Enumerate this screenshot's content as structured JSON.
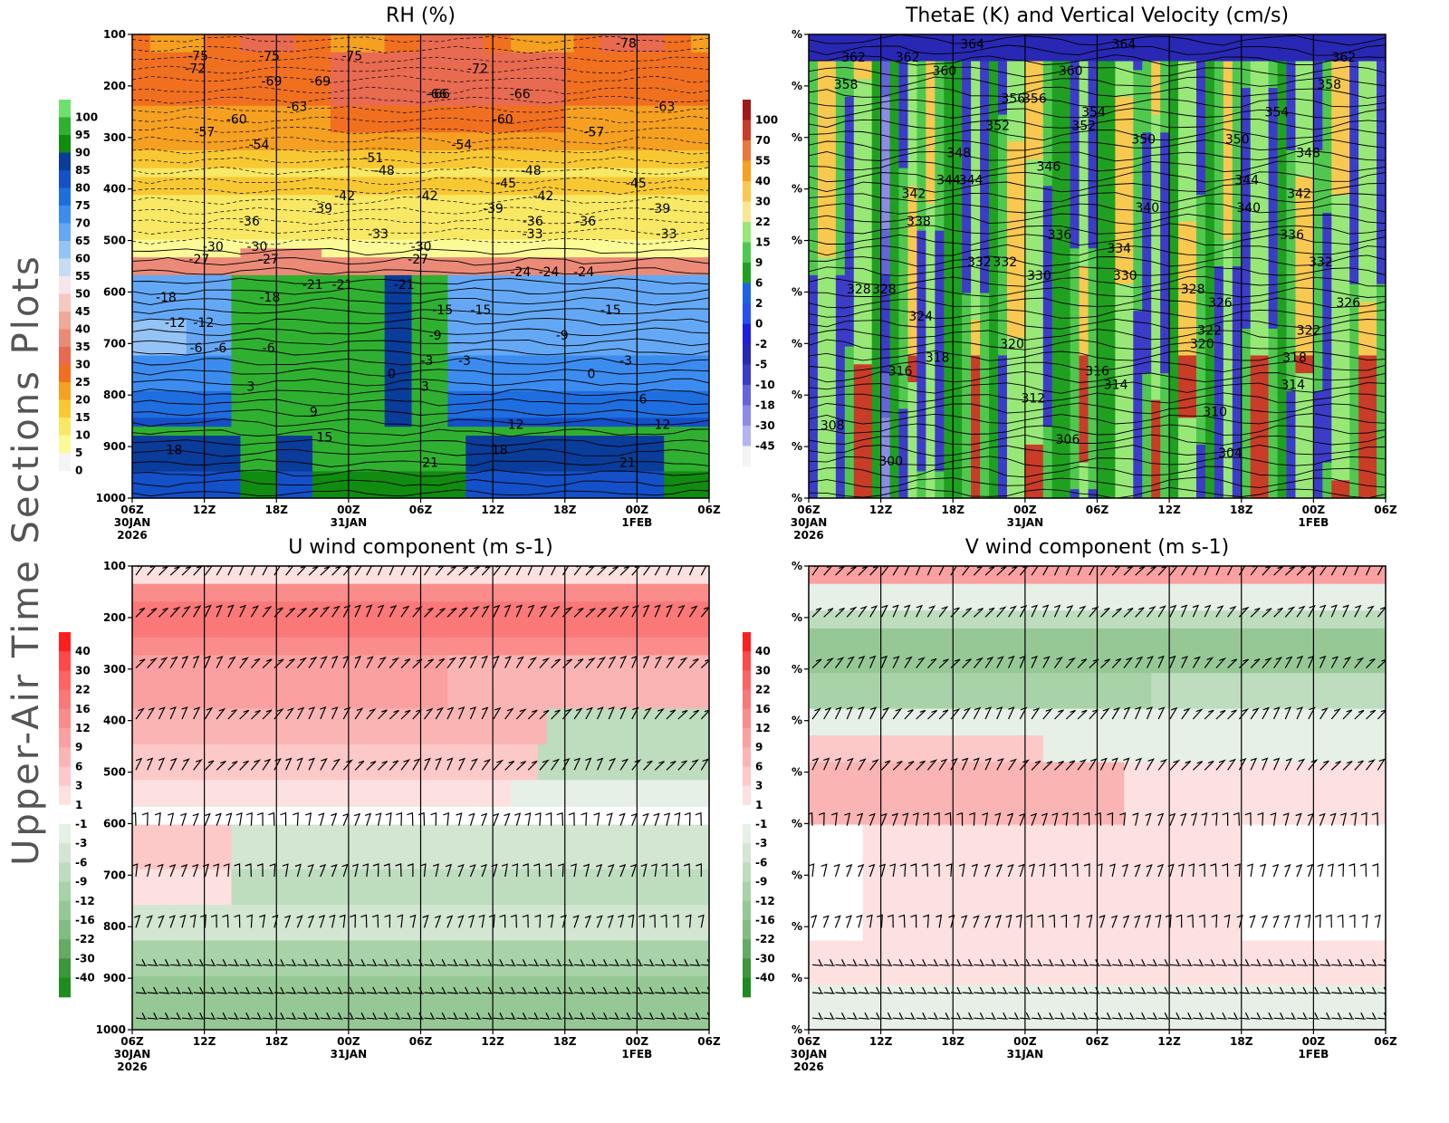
{
  "page": {
    "side_title": "Upper-Air Time Sections Plots"
  },
  "chart_data": [
    {
      "id": "rh",
      "type": "heatmap",
      "title": "RH (%)",
      "ylabels": [
        "100",
        "200",
        "300",
        "400",
        "500",
        "600",
        "700",
        "800",
        "900",
        "1000"
      ],
      "xticks": [
        "06Z",
        "12Z",
        "18Z",
        "00Z",
        "06Z",
        "12Z",
        "18Z",
        "00Z",
        "06Z"
      ],
      "xdates": [
        "30JAN",
        "",
        "",
        "31JAN",
        "",
        "",
        "",
        "1FEB",
        ""
      ],
      "xyear": "2026",
      "colorbar": {
        "labels": [
          "100",
          "95",
          "90",
          "85",
          "80",
          "75",
          "70",
          "65",
          "60",
          "55",
          "50",
          "45",
          "40",
          "35",
          "30",
          "25",
          "20",
          "15",
          "10",
          "5",
          "0"
        ],
        "colors": [
          "#6ee06e",
          "#30b030",
          "#108c10",
          "#0a3c9a",
          "#1450c8",
          "#1e6ee0",
          "#3c8cf0",
          "#64a8f5",
          "#96c3f5",
          "#c6dcf5",
          "#f5e6ec",
          "#f5c8c0",
          "#f0a898",
          "#ec8a78",
          "#e86a50",
          "#f07020",
          "#f5a020",
          "#f8c832",
          "#f8e864",
          "#fafa96",
          "#f4f4f4"
        ]
      },
      "contours": [
        "-75",
        "-66",
        "-57",
        "-63",
        "-54",
        "-45",
        "-69",
        "-72",
        "-60",
        "-51",
        "-48",
        "-75",
        "-66",
        "-63",
        "-54",
        "-45",
        "-72",
        "-75",
        "-66",
        "-57",
        "-48",
        "-78",
        "-69",
        "-60",
        "-39",
        "-33",
        "-42",
        "-36",
        "-30",
        "-24",
        "-27",
        "-39",
        "-33",
        "-42",
        "-36",
        "-30",
        "-27",
        "-24",
        "-18",
        "-42",
        "-36",
        "-30",
        "-24",
        "-18",
        "-39",
        "-33",
        "-27",
        "-21",
        "-15",
        "-21",
        "-15",
        "-12",
        "-21",
        "-15",
        "-12",
        "-9",
        "-9",
        "-6",
        "-3",
        "-3",
        "-6",
        "-3",
        "-6",
        "0",
        "0",
        "3",
        "3",
        "6",
        "9",
        "12",
        "12",
        "15",
        "18",
        "18",
        "21",
        "21"
      ]
    },
    {
      "id": "thetae",
      "type": "heatmap",
      "title": "ThetaE (K) and Vertical Velocity (cm/s)",
      "ylabels": [
        "%",
        "%",
        "%",
        "%",
        "%",
        "%",
        "%",
        "%",
        "%",
        "%"
      ],
      "xticks": [
        "06Z",
        "12Z",
        "18Z",
        "00Z",
        "06Z",
        "12Z",
        "18Z",
        "00Z",
        "06Z"
      ],
      "xdates": [
        "30JAN",
        "",
        "",
        "31JAN",
        "",
        "",
        "",
        "1FEB",
        ""
      ],
      "xyear": "2026",
      "colorbar": {
        "labels": [
          "100",
          "70",
          "55",
          "40",
          "30",
          "22",
          "15",
          "9",
          "6",
          "2",
          "0",
          "-2",
          "-5",
          "-10",
          "-18",
          "-30",
          "-45"
        ],
        "colors": [
          "#a01818",
          "#c83c28",
          "#e8783c",
          "#f8a020",
          "#f8c850",
          "#f8e896",
          "#98e878",
          "#50c850",
          "#20a020",
          "#1e64e0",
          "#2850f0",
          "#1e1edc",
          "#2828b4",
          "#3c3cc8",
          "#6464dc",
          "#8c8ce8",
          "#b4b4f0",
          "#f4f4f4"
        ]
      },
      "contours": [
        "362",
        "352",
        "348",
        "360",
        "354",
        "358",
        "364",
        "350",
        "362",
        "356",
        "354",
        "348",
        "360",
        "358",
        "352",
        "364",
        "362",
        "356",
        "350",
        "344",
        "346",
        "344",
        "342",
        "340",
        "342",
        "344",
        "340",
        "338",
        "336",
        "336",
        "332",
        "334",
        "332",
        "332",
        "328",
        "328",
        "330",
        "326",
        "328",
        "330",
        "326",
        "324",
        "320",
        "322",
        "320",
        "322",
        "318",
        "316",
        "318",
        "316",
        "314",
        "314",
        "312",
        "310",
        "308",
        "306",
        "304",
        "300"
      ]
    },
    {
      "id": "u",
      "type": "heatmap",
      "title": "U wind component (m s-1)",
      "ylabels": [
        "100",
        "200",
        "300",
        "400",
        "500",
        "600",
        "700",
        "800",
        "900",
        "1000"
      ],
      "xticks": [
        "06Z",
        "12Z",
        "18Z",
        "00Z",
        "06Z",
        "12Z",
        "18Z",
        "00Z",
        "06Z"
      ],
      "xdates": [
        "30JAN",
        "",
        "",
        "31JAN",
        "",
        "",
        "",
        "1FEB",
        ""
      ],
      "xyear": "2026",
      "colorbar": {
        "labels": [
          "40",
          "30",
          "22",
          "16",
          "12",
          "9",
          "6",
          "3",
          "1",
          "-1",
          "-3",
          "-6",
          "-9",
          "-12",
          "-16",
          "-22",
          "-30",
          "-40"
        ],
        "colors": [
          "#ff1e1e",
          "#ff4848",
          "#ff6464",
          "#fa7878",
          "#fa8c8c",
          "#faa0a0",
          "#fab4b4",
          "#fcc8c8",
          "#fde0e0",
          "#ffffff",
          "#e6f0e6",
          "#d2e6d2",
          "#bedcbe",
          "#a8d2a8",
          "#96c896",
          "#82bc82",
          "#64aa64",
          "#3c963c",
          "#1e8c1e"
        ]
      },
      "contours": []
    },
    {
      "id": "v",
      "type": "heatmap",
      "title": "V wind component (m s-1)",
      "ylabels": [
        "%",
        "%",
        "%",
        "%",
        "%",
        "%",
        "%",
        "%",
        "%",
        "%"
      ],
      "xticks": [
        "06Z",
        "12Z",
        "18Z",
        "00Z",
        "06Z",
        "12Z",
        "18Z",
        "00Z",
        "06Z"
      ],
      "xdates": [
        "30JAN",
        "",
        "",
        "31JAN",
        "",
        "",
        "",
        "1FEB",
        ""
      ],
      "xyear": "2026",
      "colorbar": {
        "labels": [
          "40",
          "30",
          "22",
          "16",
          "12",
          "9",
          "6",
          "3",
          "1",
          "-1",
          "-3",
          "-6",
          "-9",
          "-12",
          "-16",
          "-22",
          "-30",
          "-40"
        ],
        "colors": [
          "#ff1e1e",
          "#ff4848",
          "#ff6464",
          "#fa7878",
          "#fa8c8c",
          "#faa0a0",
          "#fab4b4",
          "#fcc8c8",
          "#fde0e0",
          "#ffffff",
          "#e6f0e6",
          "#d2e6d2",
          "#bedcbe",
          "#a8d2a8",
          "#96c896",
          "#82bc82",
          "#64aa64",
          "#3c963c",
          "#1e8c1e"
        ]
      },
      "contours": []
    }
  ]
}
